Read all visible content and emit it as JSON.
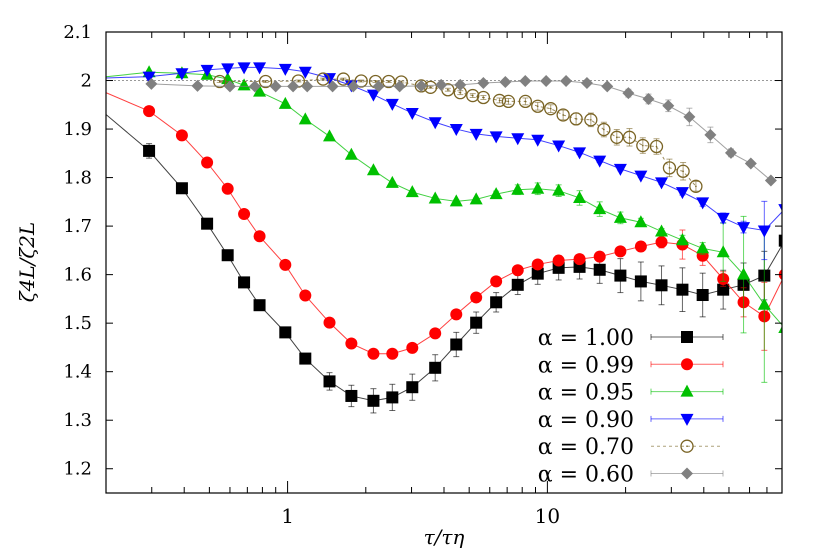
{
  "chart_data": {
    "type": "line",
    "title": "",
    "xlabel": "τ/τη",
    "ylabel": "ζ4L/ζ2L",
    "xscale": "log",
    "xlim": [
      0.2,
      80
    ],
    "ylim": [
      1.15,
      2.1
    ],
    "xticks": [
      {
        "value": 1,
        "label": "1"
      },
      {
        "value": 10,
        "label": "10"
      }
    ],
    "yticks": [
      {
        "value": 1.2,
        "label": "1.2"
      },
      {
        "value": 1.3,
        "label": "1.3"
      },
      {
        "value": 1.4,
        "label": "1.4"
      },
      {
        "value": 1.5,
        "label": "1.5"
      },
      {
        "value": 1.6,
        "label": "1.6"
      },
      {
        "value": 1.7,
        "label": "1.7"
      },
      {
        "value": 1.8,
        "label": "1.8"
      },
      {
        "value": 1.9,
        "label": "1.9"
      },
      {
        "value": 2.0,
        "label": "2"
      },
      {
        "value": 2.1,
        "label": "2.1"
      }
    ],
    "reference_line": {
      "y": 2.0,
      "style": "dotted",
      "color": "#999999"
    },
    "grid": false,
    "legend_placement": "bottom-right",
    "series": [
      {
        "name": "α = 1.00",
        "color": "#000000",
        "marker": "square",
        "line_style": "solid",
        "x": [
          0.17,
          0.293,
          0.392,
          0.49,
          0.588,
          0.68,
          0.78,
          0.98,
          1.17,
          1.45,
          1.76,
          2.14,
          2.53,
          3.02,
          3.7,
          4.46,
          5.32,
          6.35,
          7.69,
          9.18,
          11.05,
          13.3,
          15.9,
          19.1,
          22.9,
          27.5,
          33.1,
          39.6,
          47.5,
          56.9,
          68.4,
          82
        ],
        "y": [
          1.962,
          1.855,
          1.778,
          1.705,
          1.64,
          1.584,
          1.537,
          1.481,
          1.427,
          1.38,
          1.35,
          1.34,
          1.347,
          1.368,
          1.408,
          1.456,
          1.501,
          1.543,
          1.579,
          1.602,
          1.614,
          1.616,
          1.61,
          1.598,
          1.586,
          1.578,
          1.569,
          1.558,
          1.569,
          1.579,
          1.598,
          1.67
        ],
        "err": [
          0,
          0.015,
          0.01,
          0.008,
          0.008,
          0.008,
          0.008,
          0.008,
          0.01,
          0.018,
          0.022,
          0.025,
          0.027,
          0.027,
          0.027,
          0.025,
          0.022,
          0.02,
          0.02,
          0.022,
          0.025,
          0.025,
          0.028,
          0.035,
          0.04,
          0.04,
          0.045,
          0.045,
          0.04,
          0.045,
          0.05,
          0
        ]
      },
      {
        "name": "α = 0.99",
        "color": "#ff0000",
        "marker": "circle",
        "line_style": "solid",
        "x": [
          0.17,
          0.293,
          0.392,
          0.49,
          0.588,
          0.68,
          0.78,
          0.98,
          1.17,
          1.45,
          1.76,
          2.14,
          2.53,
          3.02,
          3.7,
          4.46,
          5.32,
          6.35,
          7.69,
          9.18,
          11.05,
          13.3,
          15.9,
          19.1,
          22.9,
          27.5,
          33.1,
          39.6,
          47.5,
          56.9,
          68.4,
          82
        ],
        "y": [
          1.991,
          1.937,
          1.887,
          1.831,
          1.777,
          1.725,
          1.679,
          1.62,
          1.557,
          1.501,
          1.458,
          1.437,
          1.437,
          1.449,
          1.479,
          1.518,
          1.553,
          1.586,
          1.609,
          1.621,
          1.629,
          1.632,
          1.637,
          1.648,
          1.658,
          1.667,
          1.662,
          1.639,
          1.591,
          1.543,
          1.514,
          1.6
        ],
        "err": [
          0,
          0.003,
          0.003,
          0.003,
          0.003,
          0.003,
          0.003,
          0.003,
          0.003,
          0.003,
          0.003,
          0.003,
          0.003,
          0.003,
          0.003,
          0.004,
          0.005,
          0.005,
          0.005,
          0.005,
          0.005,
          0.005,
          0.006,
          0.008,
          0.01,
          0.012,
          0.03,
          0.02,
          0.015,
          0.03,
          0.07,
          0
        ]
      },
      {
        "name": "α = 0.95",
        "color": "#00c000",
        "marker": "triangle-up",
        "line_style": "solid",
        "x": [
          0.17,
          0.293,
          0.392,
          0.49,
          0.588,
          0.68,
          0.78,
          0.98,
          1.17,
          1.45,
          1.76,
          2.14,
          2.53,
          3.02,
          3.7,
          4.46,
          5.32,
          6.35,
          7.69,
          9.18,
          11.05,
          13.3,
          15.9,
          19.1,
          22.9,
          27.5,
          33.1,
          39.6,
          47.5,
          56.9,
          68.4,
          82
        ],
        "y": [
          2.004,
          2.017,
          2.015,
          2.012,
          2.003,
          1.99,
          1.977,
          1.952,
          1.92,
          1.885,
          1.847,
          1.815,
          1.789,
          1.77,
          1.757,
          1.751,
          1.755,
          1.766,
          1.775,
          1.777,
          1.773,
          1.758,
          1.735,
          1.717,
          1.708,
          1.689,
          1.671,
          1.654,
          1.646,
          1.6,
          1.538,
          1.49
        ],
        "err": [
          0,
          0.003,
          0.003,
          0.003,
          0.003,
          0.003,
          0.003,
          0.003,
          0.003,
          0.003,
          0.003,
          0.003,
          0.003,
          0.003,
          0.003,
          0.003,
          0.003,
          0.006,
          0.01,
          0.012,
          0.012,
          0.015,
          0.015,
          0.012,
          0.008,
          0.006,
          0.01,
          0.012,
          0.06,
          0.12,
          0.16,
          0
        ]
      },
      {
        "name": "α = 0.90",
        "color": "#0000ff",
        "marker": "triangle-down",
        "line_style": "solid",
        "x": [
          0.17,
          0.293,
          0.392,
          0.49,
          0.588,
          0.68,
          0.78,
          0.98,
          1.17,
          1.45,
          1.76,
          2.14,
          2.53,
          3.02,
          3.7,
          4.46,
          5.32,
          6.35,
          7.69,
          9.18,
          11.05,
          13.3,
          15.9,
          19.1,
          22.9,
          27.5,
          33.1,
          39.6,
          47.5,
          56.9,
          68.4,
          82
        ],
        "y": [
          2.004,
          2.008,
          2.015,
          2.022,
          2.025,
          2.027,
          2.027,
          2.024,
          2.018,
          2.005,
          1.99,
          1.971,
          1.952,
          1.933,
          1.914,
          1.9,
          1.89,
          1.885,
          1.881,
          1.878,
          1.866,
          1.852,
          1.835,
          1.818,
          1.804,
          1.79,
          1.77,
          1.749,
          1.717,
          1.698,
          1.691,
          1.735
        ],
        "err": [
          0,
          0.002,
          0.002,
          0.002,
          0.002,
          0.002,
          0.002,
          0.002,
          0.002,
          0.002,
          0.002,
          0.002,
          0.002,
          0.002,
          0.002,
          0.002,
          0.002,
          0.002,
          0.002,
          0.002,
          0.003,
          0.004,
          0.004,
          0.004,
          0.004,
          0.004,
          0.006,
          0.008,
          0.01,
          0.012,
          0.06,
          0
        ]
      },
      {
        "name": "α = 0.70",
        "color": "#7a6425",
        "marker": "open-circle",
        "line_style": "dashed",
        "x": [
          0.548,
          0.823,
          1.1,
          1.37,
          1.64,
          1.92,
          2.18,
          2.45,
          2.74,
          3.27,
          3.55,
          4.14,
          4.62,
          5.16,
          5.67,
          6.54,
          7.08,
          8.23,
          9.18,
          10.3,
          11.5,
          12.9,
          14.7,
          16.5,
          18.5,
          20.7,
          23.3,
          26.3,
          29.5,
          33.3,
          37.3
        ],
        "y": [
          1.998,
          1.998,
          1.999,
          2.003,
          2.003,
          1.999,
          1.998,
          1.998,
          1.997,
          1.989,
          1.986,
          1.981,
          1.975,
          1.969,
          1.965,
          1.959,
          1.957,
          1.957,
          1.947,
          1.942,
          1.929,
          1.921,
          1.919,
          1.899,
          1.883,
          1.883,
          1.866,
          1.864,
          1.82,
          1.813,
          1.782
        ],
        "err": [
          0.002,
          0.002,
          0.002,
          0.002,
          0.002,
          0.002,
          0.002,
          0.002,
          0.002,
          0.002,
          0.002,
          0.003,
          0.004,
          0.004,
          0.004,
          0.005,
          0.006,
          0.007,
          0.008,
          0.008,
          0.01,
          0.012,
          0.014,
          0.015,
          0.016,
          0.018,
          0.016,
          0.016,
          0.018,
          0.018,
          0.01
        ]
      },
      {
        "name": "α = 0.60",
        "color": "#808080",
        "marker": "diamond",
        "line_style": "solid",
        "x": [
          0.299,
          0.45,
          0.6,
          0.748,
          0.9,
          1.05,
          1.19,
          1.49,
          1.79,
          2.24,
          2.7,
          3.27,
          3.9,
          4.62,
          5.67,
          6.89,
          8.22,
          9.89,
          11.8,
          14.2,
          17.0,
          20.5,
          24.5,
          29.2,
          35.2,
          42.4,
          50.9,
          60.7,
          72.5
        ],
        "y": [
          1.993,
          1.989,
          1.988,
          1.988,
          1.988,
          1.988,
          1.988,
          1.988,
          1.988,
          1.988,
          1.988,
          1.989,
          1.991,
          1.991,
          1.995,
          1.997,
          1.999,
          1.999,
          1.999,
          1.995,
          1.988,
          1.974,
          1.962,
          1.948,
          1.925,
          1.888,
          1.851,
          1.829,
          1.794
        ],
        "err": [
          0.002,
          0.002,
          0.002,
          0.002,
          0.002,
          0.002,
          0.002,
          0.002,
          0.002,
          0.002,
          0.002,
          0.002,
          0.002,
          0.002,
          0.002,
          0.002,
          0.002,
          0.002,
          0.002,
          0.002,
          0.003,
          0.008,
          0.01,
          0.012,
          0.018,
          0.016,
          0.008,
          0.005,
          0.004
        ]
      }
    ]
  }
}
